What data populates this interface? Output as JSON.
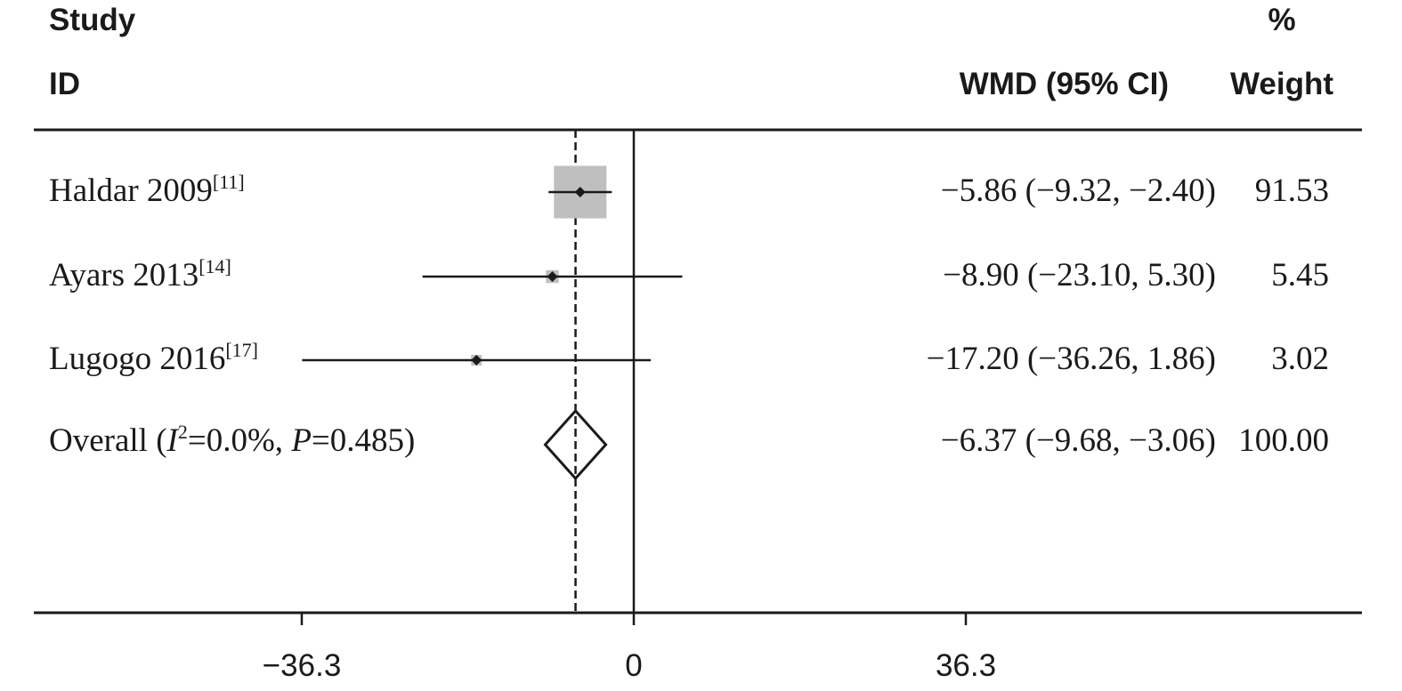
{
  "header": {
    "study_line1": "Study",
    "study_line2": "ID",
    "effect_label": "WMD (95% CI)",
    "weight_line1": "%",
    "weight_line2": "Weight"
  },
  "colors": {
    "ink": "#1a1a1a",
    "weight_box": "#bfbfbf"
  },
  "chart_data": {
    "type": "forest",
    "measure": "WMD",
    "xlim": [
      -36.3,
      36.3
    ],
    "x_ticks": [
      -36.3,
      0,
      36.3
    ],
    "x_tick_labels": [
      "−36.3",
      "0",
      "36.3"
    ],
    "null_line": 0,
    "pooled_line": -6.37,
    "studies": [
      {
        "name": "Haldar 2009",
        "ref": "[11]",
        "estimate": -5.86,
        "ci_low": -9.32,
        "ci_high": -2.4,
        "weight": 91.53,
        "ci_text": "−5.86 (−9.32, −2.40)",
        "weight_text": "91.53"
      },
      {
        "name": "Ayars 2013",
        "ref": "[14]",
        "estimate": -8.9,
        "ci_low": -23.1,
        "ci_high": 5.3,
        "weight": 5.45,
        "ci_text": "−8.90 (−23.10, 5.30)",
        "weight_text": "5.45"
      },
      {
        "name": "Lugogo 2016",
        "ref": "[17]",
        "estimate": -17.2,
        "ci_low": -36.26,
        "ci_high": 1.86,
        "weight": 3.02,
        "ci_text": "−17.20 (−36.26, 1.86)",
        "weight_text": "3.02"
      }
    ],
    "overall": {
      "label_prefix": "Overall (",
      "i2_symbol": "I",
      "i2_exp": "2",
      "i2_value": "=0.0%, ",
      "p_symbol": "P",
      "p_value": "=0.485)",
      "estimate": -6.37,
      "ci_low": -9.68,
      "ci_high": -3.06,
      "weight": 100.0,
      "ci_text": "−6.37 (−9.68, −3.06)",
      "weight_text": "100.00"
    }
  }
}
